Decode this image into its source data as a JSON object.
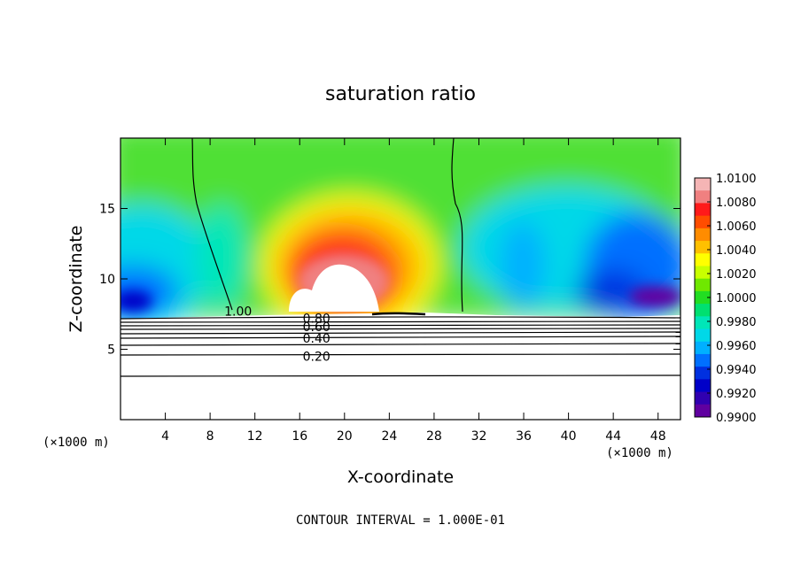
{
  "chart_data": {
    "type": "heatmap",
    "title": "saturation ratio",
    "xlabel": "X-coordinate",
    "ylabel": "Z-coordinate",
    "x_unit_label_left": "(×1000 m)",
    "x_unit_label_right": "(×1000 m)",
    "xlim": [
      0,
      50
    ],
    "ylim": [
      0,
      20
    ],
    "x_ticks": [
      4,
      8,
      12,
      16,
      20,
      24,
      28,
      32,
      36,
      40,
      44,
      48
    ],
    "y_ticks": [
      5,
      10,
      15
    ],
    "colorbar": {
      "levels": [
        "1.0100",
        "1.0080",
        "1.0060",
        "1.0040",
        "1.0020",
        "1.0000",
        "0.9980",
        "0.9960",
        "0.9940",
        "0.9920",
        "0.9900"
      ],
      "colors": [
        "#f5b5b5",
        "#f08080",
        "#ff1a1a",
        "#ff4d00",
        "#ff8c00",
        "#ffc000",
        "#ffff00",
        "#c8ff00",
        "#6fe800",
        "#22dd22",
        "#00e070",
        "#00e6b8",
        "#00d8e8",
        "#00b0ff",
        "#0070ff",
        "#0030e0",
        "#0000c8",
        "#3000b0",
        "#6000a0"
      ]
    },
    "contour_labels": [
      {
        "text": "1.00",
        "x": 10.5,
        "y": 7.7
      },
      {
        "text": "0.80",
        "x": 17.5,
        "y": 7.2
      },
      {
        "text": "0.60",
        "x": 17.5,
        "y": 6.6
      },
      {
        "text": "0.40",
        "x": 17.5,
        "y": 5.8
      },
      {
        "text": "0.20",
        "x": 17.5,
        "y": 4.5
      }
    ],
    "footnote": "CONTOUR INTERVAL = 1.000E-01"
  }
}
